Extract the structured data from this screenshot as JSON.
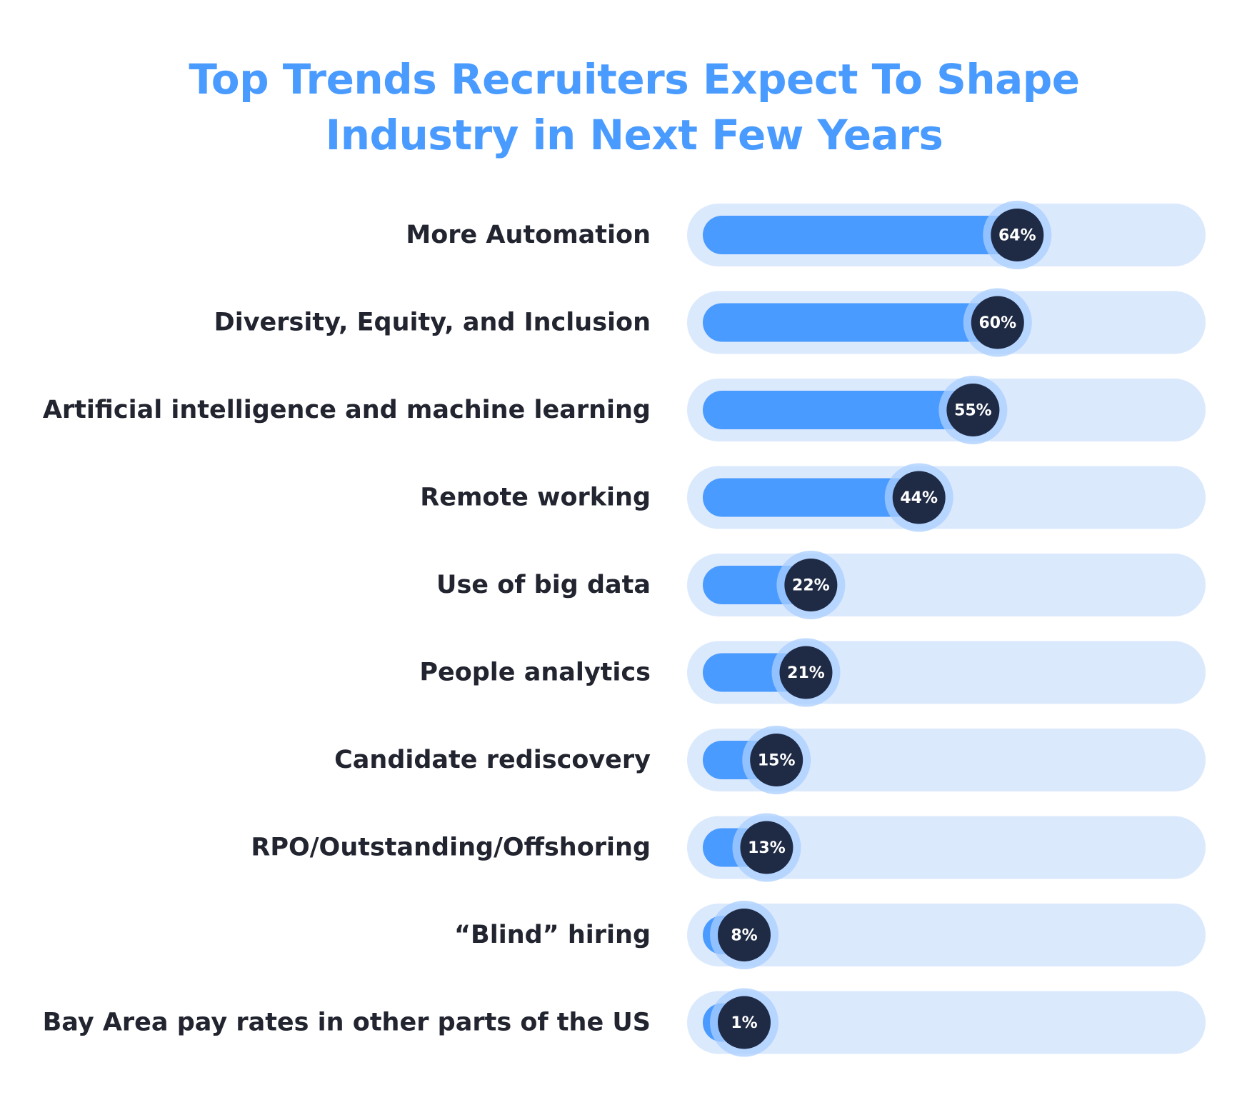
{
  "chart_data": {
    "type": "bar",
    "orientation": "horizontal",
    "title_lines": [
      "Top Trends Recruiters Expect To Shape",
      "Industry in Next Few Years"
    ],
    "categories": [
      "More Automation",
      "Diversity, Equity, and Inclusion",
      "Artificial intelligence and machine learning",
      "Remote working",
      "Use of big data",
      "People analytics",
      "Candidate rediscovery",
      "RPO/Outstanding/Offshoring",
      "“Blind” hiring",
      "Bay Area pay rates in other parts of the US"
    ],
    "values": [
      64,
      60,
      55,
      44,
      22,
      21,
      15,
      13,
      8,
      1
    ],
    "value_labels": [
      "64%",
      "60%",
      "55%",
      "44%",
      "22%",
      "21%",
      "15%",
      "13%",
      "8%",
      "1%"
    ],
    "unit": "%",
    "xlim": [
      0,
      100
    ],
    "grid": false,
    "legend": "none",
    "colors": {
      "title": "#4a9bff",
      "track": "#dbe9fd",
      "bar": "#4a9bff",
      "marker": "#1f2a44",
      "marker_halo": "#a9cdff",
      "label": "#222530",
      "value_text": "#ffffff"
    }
  }
}
